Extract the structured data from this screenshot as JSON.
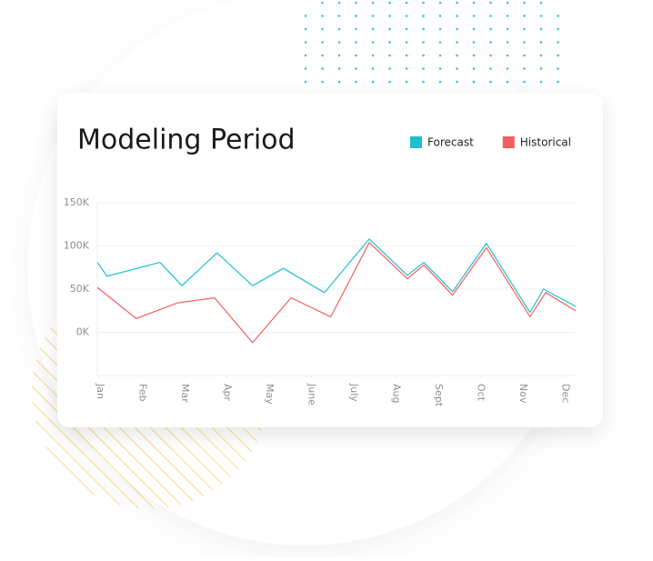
{
  "chart_data": {
    "type": "line",
    "title": "Modeling Period",
    "xlim": [
      -0.06,
      11.25
    ],
    "xticks": [
      {
        "value": 0,
        "label": "Jan"
      },
      {
        "value": 1,
        "label": "Feb"
      },
      {
        "value": 2,
        "label": "Mar"
      },
      {
        "value": 3,
        "label": "Apr"
      },
      {
        "value": 4,
        "label": "May"
      },
      {
        "value": 5,
        "label": "June"
      },
      {
        "value": 6,
        "label": "July"
      },
      {
        "value": 7,
        "label": "Aug"
      },
      {
        "value": 8,
        "label": "Sept"
      },
      {
        "value": 9,
        "label": "Oct"
      },
      {
        "value": 10,
        "label": "Nov"
      },
      {
        "value": 11,
        "label": "Dec"
      }
    ],
    "ylim": [
      -50000,
      150000
    ],
    "yticks": [
      {
        "value": 0,
        "label": "0K"
      },
      {
        "value": 50000,
        "label": "50K"
      },
      {
        "value": 100000,
        "label": "100K"
      },
      {
        "value": 150000,
        "label": "150K"
      }
    ],
    "grid": true,
    "legend": "top-right",
    "series": [
      {
        "name": "Forecast",
        "color": "#1fbfd0",
        "x": [
          -0.06,
          0.17,
          1.42,
          1.94,
          2.77,
          3.61,
          4.34,
          5.31,
          6.37,
          7.27,
          7.66,
          8.34,
          9.14,
          10.17,
          10.49,
          11.25
        ],
        "values": [
          81000,
          65000,
          81000,
          54000,
          92000,
          54000,
          74000,
          46000,
          108000,
          66000,
          81000,
          47000,
          103000,
          23000,
          50000,
          30000
        ]
      },
      {
        "name": "Historical",
        "color": "#f0605e",
        "x": [
          -0.06,
          0.86,
          1.83,
          2.71,
          3.61,
          4.52,
          5.46,
          6.37,
          7.27,
          7.66,
          8.34,
          9.14,
          10.17,
          10.54,
          11.25
        ],
        "values": [
          52000,
          16000,
          34000,
          40000,
          -12000,
          40000,
          18000,
          104000,
          62000,
          78000,
          43000,
          98000,
          18000,
          46000,
          25000
        ]
      }
    ]
  }
}
